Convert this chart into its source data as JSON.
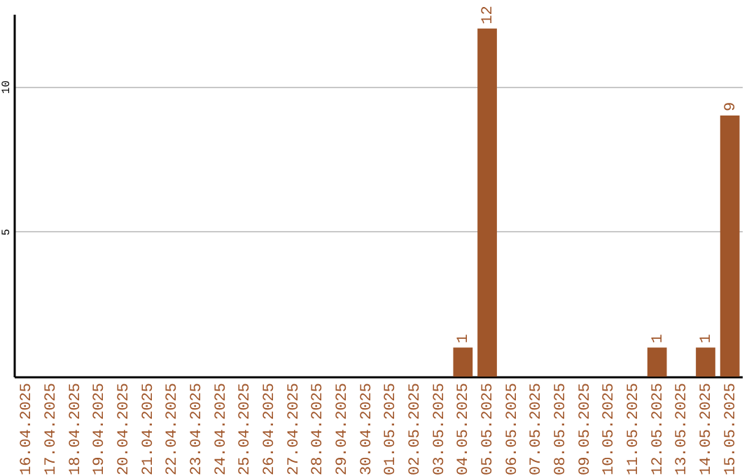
{
  "chart_data": {
    "type": "bar",
    "categories": [
      "16.04.2025",
      "17.04.2025",
      "18.04.2025",
      "19.04.2025",
      "20.04.2025",
      "21.04.2025",
      "22.04.2025",
      "23.04.2025",
      "24.04.2025",
      "25.04.2025",
      "26.04.2025",
      "27.04.2025",
      "28.04.2025",
      "29.04.2025",
      "30.04.2025",
      "01.05.2025",
      "02.05.2025",
      "03.05.2025",
      "04.05.2025",
      "05.05.2025",
      "06.05.2025",
      "07.05.2025",
      "08.05.2025",
      "09.05.2025",
      "10.05.2025",
      "11.05.2025",
      "12.05.2025",
      "13.05.2025",
      "14.05.2025",
      "15.05.2025"
    ],
    "values": [
      0,
      0,
      0,
      0,
      0,
      0,
      0,
      0,
      0,
      0,
      0,
      0,
      0,
      0,
      0,
      0,
      0,
      0,
      1,
      12,
      0,
      0,
      0,
      0,
      0,
      0,
      1,
      0,
      1,
      9
    ],
    "value_labels": [
      null,
      null,
      null,
      null,
      null,
      null,
      null,
      null,
      null,
      null,
      null,
      null,
      null,
      null,
      null,
      null,
      null,
      null,
      "1",
      "12",
      null,
      null,
      null,
      null,
      null,
      null,
      "1",
      null,
      "1",
      "9"
    ],
    "color": "#a0562a",
    "ylim": [
      0,
      12.5
    ],
    "yticks": [
      5,
      10
    ],
    "grid": "y"
  }
}
